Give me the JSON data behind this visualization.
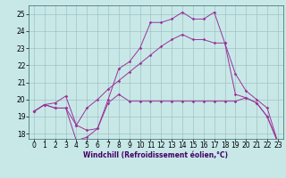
{
  "bg_color": "#c8e8e8",
  "line_color": "#993399",
  "grid_color": "#99bbbb",
  "xlim": [
    -0.5,
    23.5
  ],
  "ylim": [
    17.7,
    25.5
  ],
  "yticks": [
    18,
    19,
    20,
    21,
    22,
    23,
    24,
    25
  ],
  "xticks": [
    0,
    1,
    2,
    3,
    4,
    5,
    6,
    7,
    8,
    9,
    10,
    11,
    12,
    13,
    14,
    15,
    16,
    17,
    18,
    19,
    20,
    21,
    22,
    23
  ],
  "line1_x": [
    0,
    1,
    2,
    3,
    4,
    5,
    6,
    7,
    8,
    9,
    10,
    11,
    12,
    13,
    14,
    15,
    16,
    17,
    18,
    19,
    20,
    21,
    22,
    23
  ],
  "line1_y": [
    19.3,
    19.7,
    19.5,
    19.5,
    18.5,
    18.2,
    18.3,
    19.8,
    20.3,
    19.9,
    19.9,
    19.9,
    19.9,
    19.9,
    19.9,
    19.9,
    19.9,
    19.9,
    19.9,
    19.9,
    20.1,
    19.8,
    19.0,
    17.5
  ],
  "line2_x": [
    0,
    1,
    2,
    3,
    4,
    5,
    6,
    7,
    8,
    9,
    10,
    11,
    12,
    13,
    14,
    15,
    16,
    17,
    18,
    19,
    20,
    21,
    22,
    23
  ],
  "line2_y": [
    19.3,
    19.7,
    19.5,
    19.5,
    17.6,
    17.8,
    18.3,
    20.0,
    21.8,
    22.2,
    23.0,
    24.5,
    24.5,
    24.7,
    25.1,
    24.7,
    24.7,
    25.1,
    23.3,
    20.3,
    20.1,
    19.8,
    19.0,
    17.5
  ],
  "line3_x": [
    0,
    1,
    2,
    3,
    4,
    5,
    6,
    7,
    8,
    9,
    10,
    11,
    12,
    13,
    14,
    15,
    16,
    17,
    18,
    19,
    20,
    21,
    22,
    23
  ],
  "line3_y": [
    19.3,
    19.7,
    19.8,
    20.2,
    18.5,
    19.5,
    20.0,
    20.6,
    21.1,
    21.6,
    22.1,
    22.6,
    23.1,
    23.5,
    23.8,
    23.5,
    23.5,
    23.3,
    23.3,
    21.5,
    20.5,
    20.0,
    19.5,
    17.5
  ],
  "xlabel": "Windchill (Refroidissement éolien,°C)",
  "xlabel_fontsize": 5.5,
  "tick_fontsize": 5.5,
  "markersize": 1.8,
  "linewidth": 0.7
}
